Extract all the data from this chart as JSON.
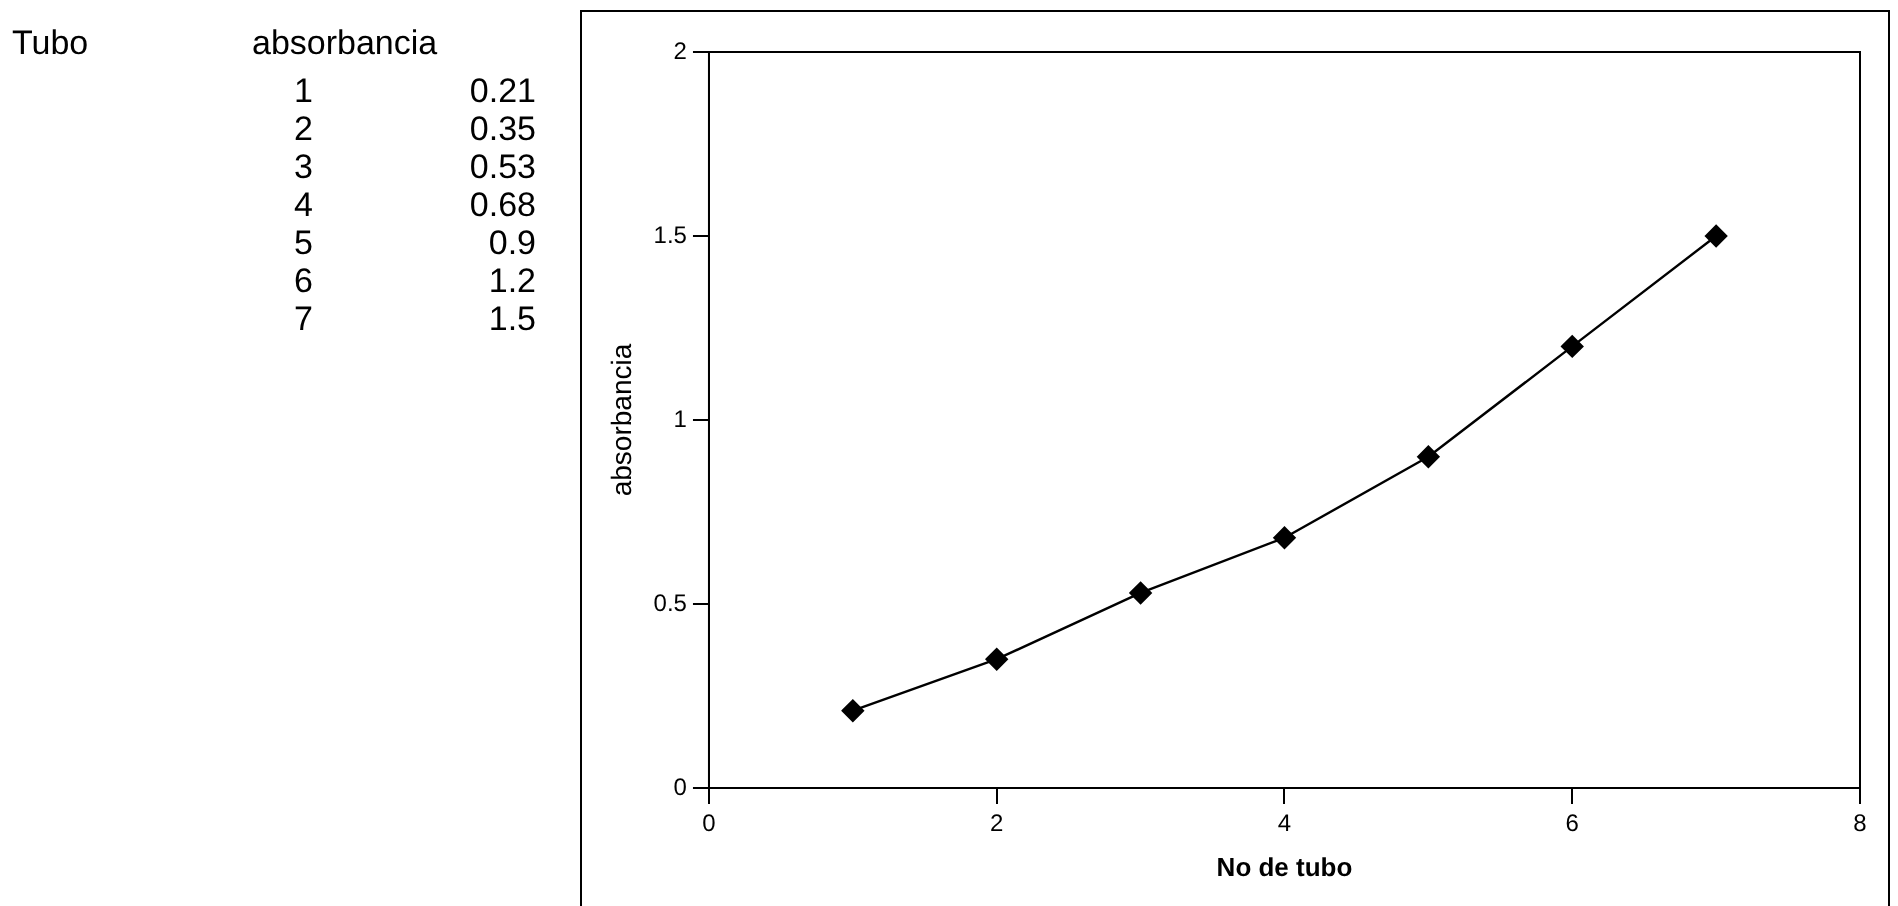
{
  "chart_data": [
    {
      "type": "other",
      "annotations": [
        "Tubo",
        "absorbancia",
        "1 0.21",
        "2 0.35",
        "3 0.53",
        "4 0.68",
        "5 0.9",
        "6 1.2",
        "7 1.5"
      ]
    },
    {
      "type": "line",
      "xlabel": "No de tubo",
      "ylabel": "absorbancia",
      "x": [
        1,
        2,
        3,
        4,
        5,
        6,
        7
      ],
      "values": [
        0.21,
        0.35,
        0.53,
        0.68,
        0.9,
        1.2,
        1.5
      ],
      "color": "#000000",
      "xlim": [
        0,
        8
      ],
      "xticks": [
        0,
        2,
        4,
        6,
        8
      ],
      "ylim": [
        0,
        2
      ],
      "yticks": [
        0,
        0.5,
        1,
        1.5,
        2
      ],
      "grid": false,
      "legend": false,
      "marker": "diamond",
      "line_style": "solid"
    }
  ]
}
